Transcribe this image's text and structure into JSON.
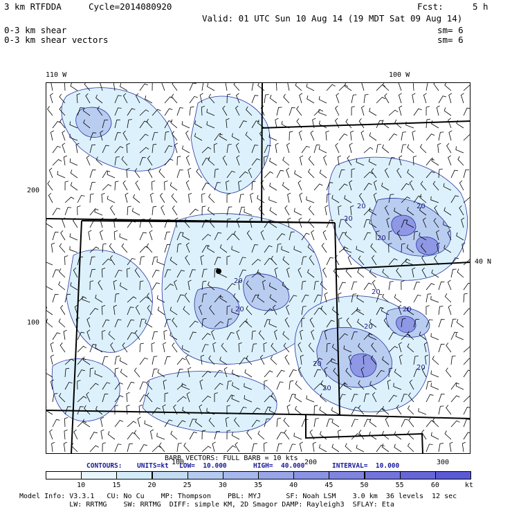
{
  "header": {
    "model": "3 km RTFDDA",
    "cycle": "Cycle=2014080920",
    "fcst_label": "Fcst:",
    "fcst_value": "5 h",
    "valid": "Valid: 01 UTC Sun 10 Aug 14 (19 MDT Sat 09 Aug 14)",
    "field1": "0-3 km shear",
    "field2": "0-3 km shear vectors",
    "sm1": "sm= 6",
    "sm2": "sm= 6"
  },
  "map": {
    "lon_labels": [
      "110 W",
      "100 W"
    ],
    "lat_label": "40 N",
    "left_ticks": [
      "200",
      "100"
    ],
    "bottom_ticks": [
      "100",
      "200",
      "300"
    ],
    "contour_labels": [
      "20",
      "20",
      "20",
      "20",
      "20",
      "20",
      "20",
      "20",
      "20",
      "20",
      "20",
      "20"
    ]
  },
  "legend": {
    "barb_line": "BARB VECTORS: FULL BARB = 10 kts",
    "contours_label": "CONTOURS:",
    "units": "UNITS=kt",
    "low": "LOW=  10.000",
    "high": "HIGH=  40.000",
    "interval": "INTERVAL=  10.000"
  },
  "colorbar": {
    "ticks": [
      "10",
      "15",
      "20",
      "25",
      "30",
      "35",
      "40",
      "45",
      "50",
      "55",
      "60"
    ],
    "unit": "kt",
    "colors": [
      "#ffffff",
      "#e8f6fc",
      "#d3edf8",
      "#c3dcf4",
      "#b5caf0",
      "#a6b8ec",
      "#98a6e8",
      "#8a94e4",
      "#7e84e0",
      "#7274dc",
      "#6666d8",
      "#5a5ad4"
    ]
  },
  "footer": {
    "line1": "Model Info: V3.3.1   CU: No Cu    MP: Thompson    PBL: MYJ      SF: Noah LSM    3.0 km  36 levels  12 sec",
    "line2": "            LW: RRTMG    SW: RRTMG  DIFF: simple KM, 2D Smagor DAMP: Rayleigh3  SFLAY: Eta"
  },
  "shading": {
    "light_color": "#dcf1fb",
    "mid_color": "#b9cdf1",
    "dark_color": "#8f98e4",
    "contour_color": "#2633a0"
  }
}
